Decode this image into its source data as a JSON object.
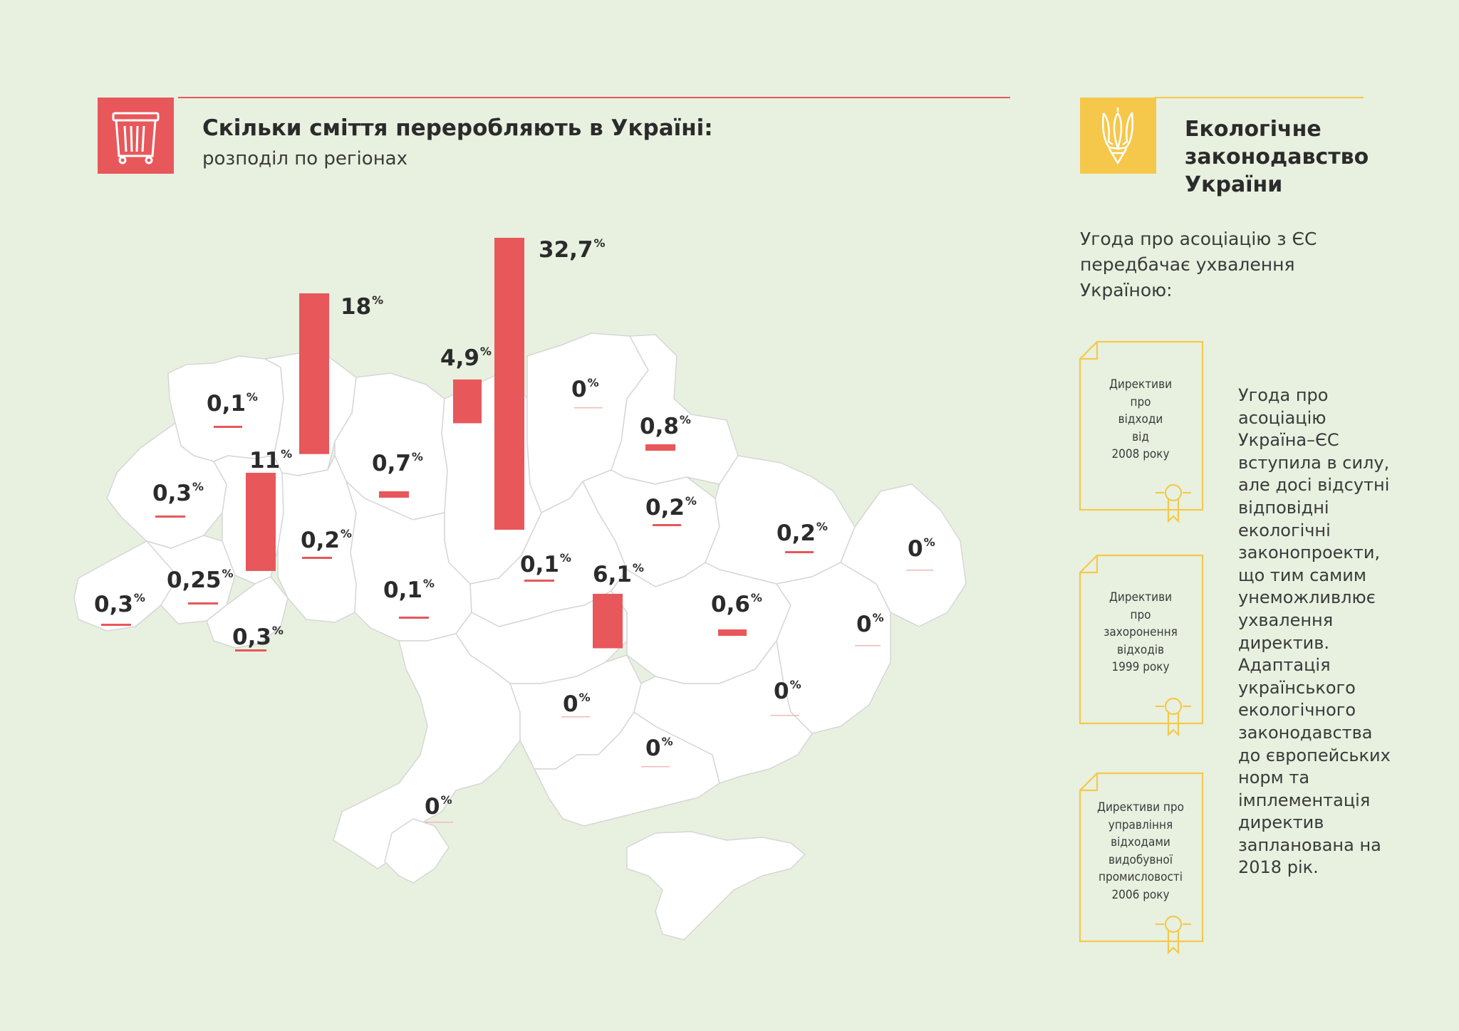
{
  "header": {
    "title": "Скільки сміття переробляють в Україні:",
    "subtitle": "розподіл по регіонах",
    "icon": "trash-bin-icon",
    "accent_color": "#e8575a"
  },
  "sidebar": {
    "title_lines": [
      "Екологічне",
      "законодавство",
      "України"
    ],
    "icon": "trident-icon",
    "accent_color": "#f5c84c",
    "intro_lines": [
      "Угода про асоціацію з ЄС",
      "передбачає ухвалення",
      "Україною:"
    ],
    "documents": [
      {
        "lines": [
          "Директиви",
          "про",
          "відходи",
          "від",
          "2008 року"
        ]
      },
      {
        "lines": [
          "Директиви",
          "про",
          "захоронення",
          "відходів",
          "1999 року"
        ]
      },
      {
        "lines": [
          "Директиви про",
          "управління",
          "відходами",
          "видобувної",
          "промисловості",
          "2006 року"
        ]
      }
    ],
    "text_lines": [
      "Угода про",
      "асоціацію",
      "Україна–ЄС",
      "вступила в силу,",
      "але досі відсутні",
      "відповідні",
      "екологічні",
      "законопроекти,",
      "що тим самим",
      "унеможливлює",
      "ухвалення",
      "директив.",
      "Адаптація",
      "українського",
      "екологічного",
      "законодавства",
      "до європейських",
      "норм та",
      "імплементація",
      "директив",
      "запланована на",
      "2018 рік."
    ]
  },
  "chart_data": {
    "type": "bar",
    "unit": "%",
    "regions": [
      {
        "value": 0.1,
        "label": "0,1"
      },
      {
        "value": 18,
        "label": "18"
      },
      {
        "value": 4.9,
        "label": "4,9"
      },
      {
        "value": 32.7,
        "label": "32,7"
      },
      {
        "value": 0,
        "label": "0"
      },
      {
        "value": 0.8,
        "label": "0,8"
      },
      {
        "value": 11,
        "label": "11"
      },
      {
        "value": 0.3,
        "label": "0,3"
      },
      {
        "value": 0.7,
        "label": "0,7"
      },
      {
        "value": 0.2,
        "label": "0,2"
      },
      {
        "value": 0.2,
        "label": "0,2"
      },
      {
        "value": 0.2,
        "label": "0,2"
      },
      {
        "value": 0,
        "label": "0"
      },
      {
        "value": 0.1,
        "label": "0,1"
      },
      {
        "value": 0.25,
        "label": "0,25"
      },
      {
        "value": 0.1,
        "label": "0,1"
      },
      {
        "value": 6.1,
        "label": "6,1"
      },
      {
        "value": 0.3,
        "label": "0,3"
      },
      {
        "value": 0.6,
        "label": "0,6"
      },
      {
        "value": 0,
        "label": "0"
      },
      {
        "value": 0.3,
        "label": "0,3"
      },
      {
        "value": 0,
        "label": "0"
      },
      {
        "value": 0,
        "label": "0"
      },
      {
        "value": 0,
        "label": "0"
      },
      {
        "value": 0,
        "label": "0"
      }
    ]
  }
}
